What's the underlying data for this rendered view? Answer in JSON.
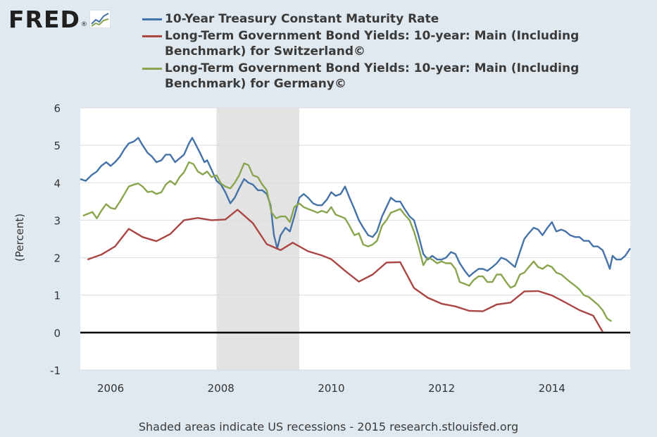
{
  "header": {
    "logo_text": "FRED",
    "logo_reg": "®"
  },
  "footer": {
    "text": "Shaded areas indicate US recessions - 2015 research.stlouisfed.org"
  },
  "chart_data": {
    "type": "line",
    "title": "",
    "xlabel": "",
    "ylabel": "(Percent)",
    "xlim": [
      2005.45,
      2015.42
    ],
    "ylim": [
      -1,
      6
    ],
    "yticks": [
      -1,
      0,
      1,
      2,
      3,
      4,
      5,
      6
    ],
    "xticks": [
      2006,
      2008,
      2010,
      2012,
      2014
    ],
    "grid": true,
    "legend_position": "top",
    "recessions": [
      [
        2007.92,
        2009.42
      ]
    ],
    "series": [
      {
        "name": "10-Year Treasury Constant Maturity Rate",
        "color": "#4572a7",
        "points": [
          [
            2005.45,
            4.1
          ],
          [
            2005.55,
            4.05
          ],
          [
            2005.65,
            4.2
          ],
          [
            2005.75,
            4.3
          ],
          [
            2005.83,
            4.45
          ],
          [
            2005.92,
            4.55
          ],
          [
            2006.0,
            4.45
          ],
          [
            2006.08,
            4.55
          ],
          [
            2006.17,
            4.7
          ],
          [
            2006.25,
            4.9
          ],
          [
            2006.33,
            5.05
          ],
          [
            2006.42,
            5.1
          ],
          [
            2006.5,
            5.2
          ],
          [
            2006.58,
            5.0
          ],
          [
            2006.67,
            4.8
          ],
          [
            2006.75,
            4.7
          ],
          [
            2006.83,
            4.55
          ],
          [
            2006.92,
            4.6
          ],
          [
            2007.0,
            4.75
          ],
          [
            2007.08,
            4.75
          ],
          [
            2007.17,
            4.55
          ],
          [
            2007.25,
            4.65
          ],
          [
            2007.33,
            4.75
          ],
          [
            2007.42,
            5.05
          ],
          [
            2007.48,
            5.2
          ],
          [
            2007.55,
            5.0
          ],
          [
            2007.62,
            4.8
          ],
          [
            2007.7,
            4.55
          ],
          [
            2007.75,
            4.6
          ],
          [
            2007.83,
            4.35
          ],
          [
            2007.92,
            4.05
          ],
          [
            2008.0,
            3.95
          ],
          [
            2008.08,
            3.75
          ],
          [
            2008.17,
            3.45
          ],
          [
            2008.25,
            3.6
          ],
          [
            2008.33,
            3.85
          ],
          [
            2008.42,
            4.1
          ],
          [
            2008.5,
            4.0
          ],
          [
            2008.58,
            3.95
          ],
          [
            2008.67,
            3.8
          ],
          [
            2008.75,
            3.8
          ],
          [
            2008.83,
            3.7
          ],
          [
            2008.9,
            3.4
          ],
          [
            2008.96,
            2.6
          ],
          [
            2009.02,
            2.25
          ],
          [
            2009.08,
            2.6
          ],
          [
            2009.17,
            2.8
          ],
          [
            2009.25,
            2.7
          ],
          [
            2009.33,
            3.1
          ],
          [
            2009.42,
            3.6
          ],
          [
            2009.5,
            3.7
          ],
          [
            2009.58,
            3.6
          ],
          [
            2009.67,
            3.45
          ],
          [
            2009.75,
            3.4
          ],
          [
            2009.83,
            3.4
          ],
          [
            2009.92,
            3.55
          ],
          [
            2010.0,
            3.75
          ],
          [
            2010.08,
            3.65
          ],
          [
            2010.17,
            3.7
          ],
          [
            2010.25,
            3.9
          ],
          [
            2010.33,
            3.6
          ],
          [
            2010.42,
            3.3
          ],
          [
            2010.5,
            3.0
          ],
          [
            2010.58,
            2.8
          ],
          [
            2010.67,
            2.6
          ],
          [
            2010.75,
            2.55
          ],
          [
            2010.83,
            2.7
          ],
          [
            2010.92,
            3.1
          ],
          [
            2011.0,
            3.35
          ],
          [
            2011.08,
            3.6
          ],
          [
            2011.17,
            3.5
          ],
          [
            2011.25,
            3.5
          ],
          [
            2011.33,
            3.3
          ],
          [
            2011.42,
            3.1
          ],
          [
            2011.5,
            3.0
          ],
          [
            2011.58,
            2.6
          ],
          [
            2011.67,
            2.1
          ],
          [
            2011.75,
            1.95
          ],
          [
            2011.83,
            2.05
          ],
          [
            2011.92,
            1.95
          ],
          [
            2012.0,
            1.95
          ],
          [
            2012.08,
            2.0
          ],
          [
            2012.17,
            2.15
          ],
          [
            2012.25,
            2.1
          ],
          [
            2012.33,
            1.85
          ],
          [
            2012.42,
            1.65
          ],
          [
            2012.5,
            1.5
          ],
          [
            2012.58,
            1.6
          ],
          [
            2012.67,
            1.7
          ],
          [
            2012.75,
            1.7
          ],
          [
            2012.83,
            1.65
          ],
          [
            2012.92,
            1.75
          ],
          [
            2013.0,
            1.85
          ],
          [
            2013.08,
            2.0
          ],
          [
            2013.17,
            1.95
          ],
          [
            2013.25,
            1.85
          ],
          [
            2013.33,
            1.75
          ],
          [
            2013.42,
            2.15
          ],
          [
            2013.5,
            2.5
          ],
          [
            2013.58,
            2.65
          ],
          [
            2013.67,
            2.8
          ],
          [
            2013.75,
            2.75
          ],
          [
            2013.83,
            2.6
          ],
          [
            2013.92,
            2.8
          ],
          [
            2014.0,
            2.95
          ],
          [
            2014.08,
            2.7
          ],
          [
            2014.17,
            2.75
          ],
          [
            2014.25,
            2.7
          ],
          [
            2014.33,
            2.6
          ],
          [
            2014.42,
            2.55
          ],
          [
            2014.5,
            2.55
          ],
          [
            2014.58,
            2.45
          ],
          [
            2014.67,
            2.45
          ],
          [
            2014.75,
            2.3
          ],
          [
            2014.83,
            2.3
          ],
          [
            2014.92,
            2.2
          ],
          [
            2015.0,
            1.9
          ],
          [
            2015.05,
            1.7
          ],
          [
            2015.1,
            2.05
          ],
          [
            2015.17,
            1.95
          ],
          [
            2015.25,
            1.95
          ],
          [
            2015.33,
            2.05
          ],
          [
            2015.42,
            2.25
          ]
        ]
      },
      {
        "name": "Long-Term Government Bond Yields: 10-year: Main (Including Benchmark) for Switzerland©",
        "color": "#aa4643",
        "points": [
          [
            2005.58,
            1.95
          ],
          [
            2005.83,
            2.08
          ],
          [
            2006.08,
            2.3
          ],
          [
            2006.33,
            2.77
          ],
          [
            2006.58,
            2.55
          ],
          [
            2006.83,
            2.44
          ],
          [
            2007.08,
            2.63
          ],
          [
            2007.33,
            3.0
          ],
          [
            2007.58,
            3.06
          ],
          [
            2007.83,
            3.0
          ],
          [
            2008.08,
            3.02
          ],
          [
            2008.3,
            3.28
          ],
          [
            2008.58,
            2.92
          ],
          [
            2008.83,
            2.36
          ],
          [
            2009.08,
            2.2
          ],
          [
            2009.3,
            2.4
          ],
          [
            2009.58,
            2.17
          ],
          [
            2009.83,
            2.06
          ],
          [
            2010.0,
            1.96
          ],
          [
            2010.25,
            1.65
          ],
          [
            2010.5,
            1.36
          ],
          [
            2010.75,
            1.55
          ],
          [
            2011.0,
            1.87
          ],
          [
            2011.25,
            1.88
          ],
          [
            2011.5,
            1.19
          ],
          [
            2011.75,
            0.93
          ],
          [
            2012.0,
            0.77
          ],
          [
            2012.25,
            0.7
          ],
          [
            2012.5,
            0.58
          ],
          [
            2012.75,
            0.57
          ],
          [
            2013.0,
            0.75
          ],
          [
            2013.25,
            0.8
          ],
          [
            2013.5,
            1.1
          ],
          [
            2013.75,
            1.11
          ],
          [
            2014.0,
            0.99
          ],
          [
            2014.25,
            0.8
          ],
          [
            2014.5,
            0.6
          ],
          [
            2014.75,
            0.45
          ],
          [
            2014.92,
            0.02
          ]
        ]
      },
      {
        "name": "Long-Term Government Bond Yields: 10-year: Main (Including Benchmark) for Germany©",
        "color": "#89a54e",
        "points": [
          [
            2005.5,
            3.12
          ],
          [
            2005.67,
            3.22
          ],
          [
            2005.75,
            3.05
          ],
          [
            2005.83,
            3.25
          ],
          [
            2005.92,
            3.43
          ],
          [
            2006.0,
            3.33
          ],
          [
            2006.08,
            3.3
          ],
          [
            2006.17,
            3.5
          ],
          [
            2006.25,
            3.7
          ],
          [
            2006.33,
            3.9
          ],
          [
            2006.42,
            3.95
          ],
          [
            2006.5,
            3.98
          ],
          [
            2006.58,
            3.9
          ],
          [
            2006.67,
            3.75
          ],
          [
            2006.75,
            3.77
          ],
          [
            2006.83,
            3.7
          ],
          [
            2006.92,
            3.75
          ],
          [
            2007.0,
            3.95
          ],
          [
            2007.08,
            4.05
          ],
          [
            2007.17,
            3.95
          ],
          [
            2007.25,
            4.15
          ],
          [
            2007.33,
            4.28
          ],
          [
            2007.42,
            4.55
          ],
          [
            2007.5,
            4.5
          ],
          [
            2007.58,
            4.3
          ],
          [
            2007.67,
            4.22
          ],
          [
            2007.75,
            4.3
          ],
          [
            2007.83,
            4.15
          ],
          [
            2007.92,
            4.2
          ],
          [
            2008.0,
            3.98
          ],
          [
            2008.08,
            3.9
          ],
          [
            2008.17,
            3.85
          ],
          [
            2008.25,
            4.0
          ],
          [
            2008.33,
            4.2
          ],
          [
            2008.42,
            4.52
          ],
          [
            2008.5,
            4.47
          ],
          [
            2008.58,
            4.2
          ],
          [
            2008.67,
            4.15
          ],
          [
            2008.75,
            3.95
          ],
          [
            2008.83,
            3.8
          ],
          [
            2008.92,
            3.2
          ],
          [
            2009.0,
            3.05
          ],
          [
            2009.08,
            3.1
          ],
          [
            2009.17,
            3.1
          ],
          [
            2009.25,
            2.95
          ],
          [
            2009.33,
            3.35
          ],
          [
            2009.42,
            3.45
          ],
          [
            2009.5,
            3.35
          ],
          [
            2009.58,
            3.3
          ],
          [
            2009.67,
            3.25
          ],
          [
            2009.75,
            3.2
          ],
          [
            2009.83,
            3.25
          ],
          [
            2009.92,
            3.2
          ],
          [
            2010.0,
            3.35
          ],
          [
            2010.08,
            3.15
          ],
          [
            2010.17,
            3.1
          ],
          [
            2010.25,
            3.05
          ],
          [
            2010.33,
            2.85
          ],
          [
            2010.42,
            2.6
          ],
          [
            2010.5,
            2.65
          ],
          [
            2010.58,
            2.35
          ],
          [
            2010.67,
            2.3
          ],
          [
            2010.75,
            2.35
          ],
          [
            2010.83,
            2.45
          ],
          [
            2010.92,
            2.85
          ],
          [
            2011.0,
            3.0
          ],
          [
            2011.08,
            3.2
          ],
          [
            2011.17,
            3.25
          ],
          [
            2011.25,
            3.3
          ],
          [
            2011.33,
            3.15
          ],
          [
            2011.42,
            3.0
          ],
          [
            2011.5,
            2.7
          ],
          [
            2011.58,
            2.3
          ],
          [
            2011.67,
            1.8
          ],
          [
            2011.75,
            2.0
          ],
          [
            2011.83,
            1.95
          ],
          [
            2011.92,
            1.85
          ],
          [
            2012.0,
            1.9
          ],
          [
            2012.08,
            1.85
          ],
          [
            2012.17,
            1.85
          ],
          [
            2012.25,
            1.7
          ],
          [
            2012.33,
            1.35
          ],
          [
            2012.42,
            1.3
          ],
          [
            2012.5,
            1.25
          ],
          [
            2012.58,
            1.4
          ],
          [
            2012.67,
            1.5
          ],
          [
            2012.75,
            1.5
          ],
          [
            2012.83,
            1.35
          ],
          [
            2012.92,
            1.35
          ],
          [
            2013.0,
            1.55
          ],
          [
            2013.08,
            1.55
          ],
          [
            2013.17,
            1.35
          ],
          [
            2013.25,
            1.2
          ],
          [
            2013.33,
            1.25
          ],
          [
            2013.42,
            1.55
          ],
          [
            2013.5,
            1.6
          ],
          [
            2013.58,
            1.75
          ],
          [
            2013.67,
            1.9
          ],
          [
            2013.75,
            1.75
          ],
          [
            2013.83,
            1.7
          ],
          [
            2013.92,
            1.8
          ],
          [
            2014.0,
            1.75
          ],
          [
            2014.08,
            1.6
          ],
          [
            2014.17,
            1.55
          ],
          [
            2014.25,
            1.45
          ],
          [
            2014.33,
            1.35
          ],
          [
            2014.42,
            1.25
          ],
          [
            2014.5,
            1.15
          ],
          [
            2014.58,
            1.0
          ],
          [
            2014.67,
            0.95
          ],
          [
            2014.75,
            0.85
          ],
          [
            2014.83,
            0.75
          ],
          [
            2014.92,
            0.6
          ],
          [
            2015.0,
            0.38
          ],
          [
            2015.08,
            0.3
          ]
        ]
      }
    ]
  }
}
